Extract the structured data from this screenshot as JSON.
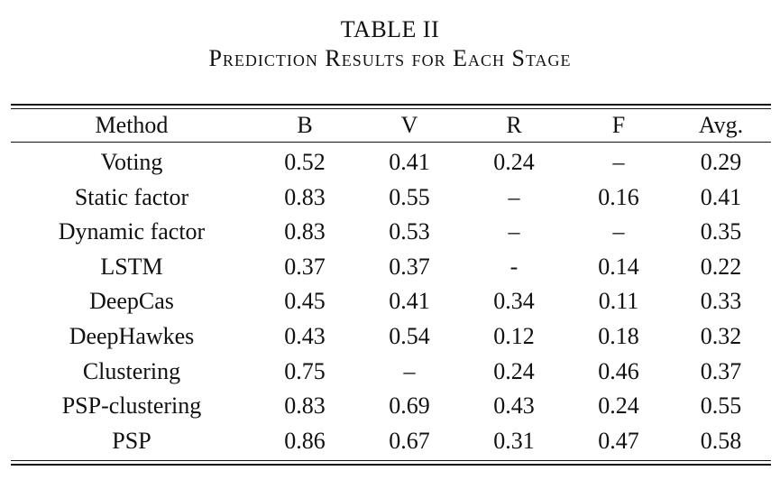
{
  "caption": {
    "number": "TABLE II",
    "title": "Prediction Results for Each Stage"
  },
  "table": {
    "columns": [
      "Method",
      "B",
      "V",
      "R",
      "F",
      "Avg."
    ],
    "rows": [
      {
        "method": "Voting",
        "cells": [
          "0.52",
          "0.41",
          "0.24",
          "–",
          "0.29"
        ],
        "bold": [
          false,
          false,
          false,
          false,
          false
        ]
      },
      {
        "method": "Static factor",
        "cells": [
          "0.83",
          "0.55",
          "–",
          "0.16",
          "0.41"
        ],
        "bold": [
          false,
          false,
          false,
          false,
          false
        ]
      },
      {
        "method": "Dynamic factor",
        "cells": [
          "0.83",
          "0.53",
          "–",
          "–",
          "0.35"
        ],
        "bold": [
          false,
          false,
          false,
          false,
          false
        ]
      },
      {
        "method": "LSTM",
        "cells": [
          "0.37",
          "0.37",
          "-",
          "0.14",
          "0.22"
        ],
        "bold": [
          false,
          false,
          false,
          false,
          false
        ]
      },
      {
        "method": "DeepCas",
        "cells": [
          "0.45",
          "0.41",
          "0.34",
          "0.11",
          "0.33"
        ],
        "bold": [
          false,
          false,
          false,
          false,
          false
        ]
      },
      {
        "method": "DeepHawkes",
        "cells": [
          "0.43",
          "0.54",
          "0.12",
          "0.18",
          "0.32"
        ],
        "bold": [
          false,
          false,
          false,
          false,
          false
        ]
      },
      {
        "method": "Clustering",
        "cells": [
          "0.75",
          "–",
          "0.24",
          "0.46",
          "0.37"
        ],
        "bold": [
          false,
          false,
          false,
          false,
          false
        ]
      },
      {
        "method": "PSP-clustering",
        "cells": [
          "0.83",
          "0.69",
          "0.43",
          "0.24",
          "0.55"
        ],
        "bold": [
          false,
          true,
          true,
          false,
          false
        ]
      },
      {
        "method": "PSP",
        "cells": [
          "0.86",
          "0.67",
          "0.31",
          "0.47",
          "0.58"
        ],
        "bold": [
          true,
          false,
          false,
          true,
          true
        ]
      }
    ]
  }
}
